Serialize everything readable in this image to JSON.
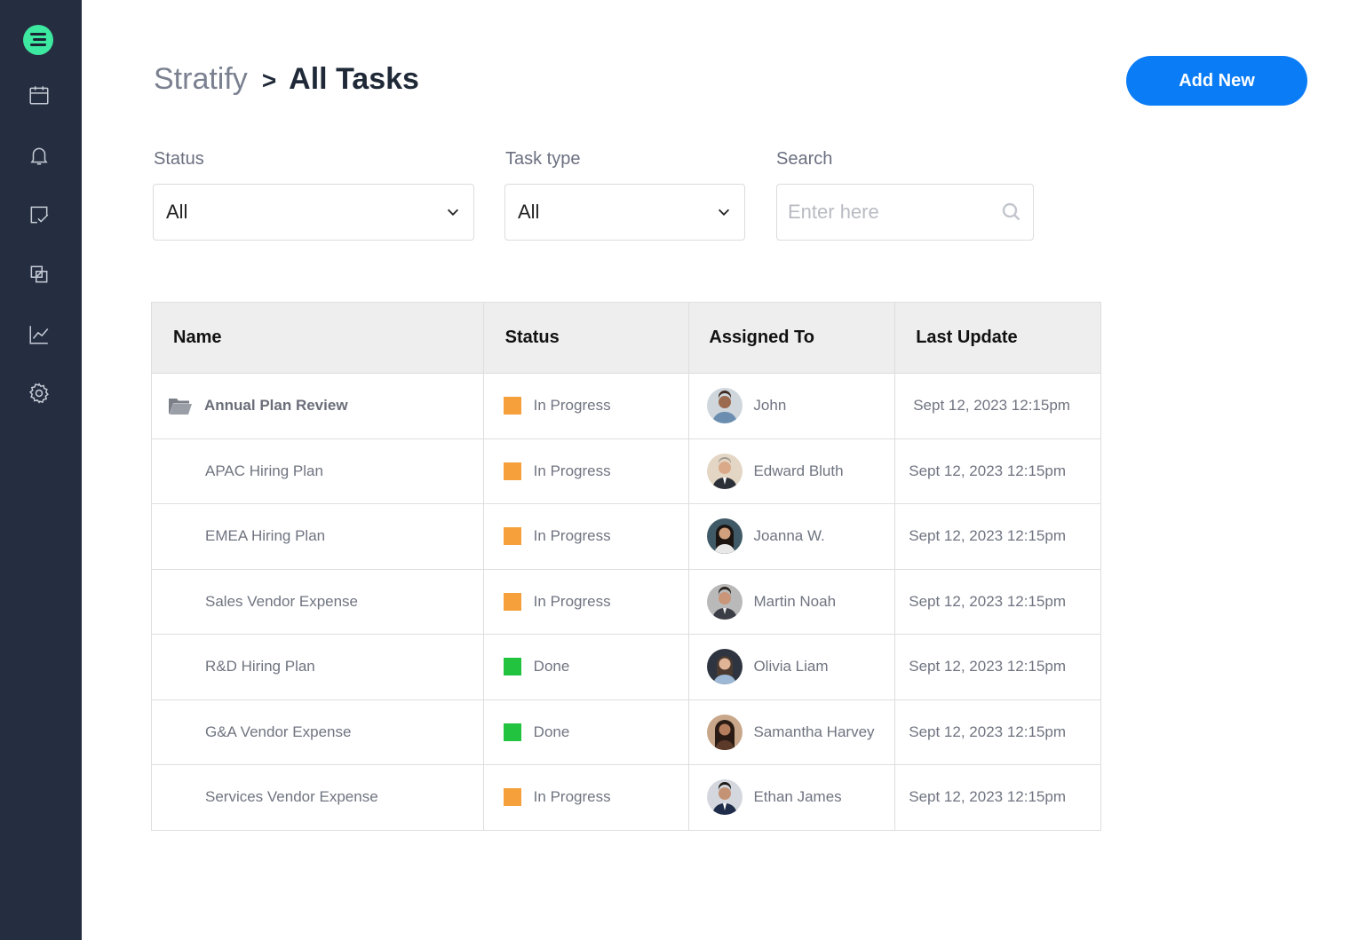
{
  "app": {
    "name": "Stratify",
    "logo": "stratify-logo-icon"
  },
  "sidebar": {
    "items": [
      {
        "name": "calendar-icon"
      },
      {
        "name": "bell-icon"
      },
      {
        "name": "tasks-icon"
      },
      {
        "name": "layers-icon"
      },
      {
        "name": "chart-icon"
      },
      {
        "name": "gear-icon"
      }
    ]
  },
  "breadcrumb": {
    "root": "Stratify",
    "separator": ">",
    "current": "All Tasks"
  },
  "actions": {
    "add_new": "Add New"
  },
  "filters": {
    "status": {
      "label": "Status",
      "value": "All"
    },
    "task_type": {
      "label": "Task type",
      "value": "All"
    },
    "search": {
      "label": "Search",
      "placeholder": "Enter here"
    }
  },
  "table": {
    "headers": [
      "Name",
      "Status",
      "Assigned To",
      "Last Update"
    ],
    "rows": [
      {
        "name": "Annual Plan Review",
        "status": "In Progress",
        "assignee": "John",
        "updated": "Sept 12, 2023 12:15pm"
      },
      {
        "name": "APAC Hiring Plan",
        "status": "In Progress",
        "assignee": "Edward Bluth",
        "updated": "Sept 12, 2023 12:15pm"
      },
      {
        "name": "EMEA Hiring Plan",
        "status": "In Progress",
        "assignee": "Joanna W.",
        "updated": "Sept 12, 2023 12:15pm"
      },
      {
        "name": "Sales Vendor Expense",
        "status": "In Progress",
        "assignee": "Martin Noah",
        "updated": "Sept 12, 2023 12:15pm"
      },
      {
        "name": "R&D Hiring Plan",
        "status": "Done",
        "assignee": "Olivia Liam",
        "updated": "Sept 12, 2023 12:15pm"
      },
      {
        "name": "G&A Vendor Expense",
        "status": "Done",
        "assignee": "Samantha Harvey",
        "updated": "Sept 12, 2023 12:15pm"
      },
      {
        "name": "Services Vendor Expense",
        "status": "In Progress",
        "assignee": "Ethan James",
        "updated": "Sept 12, 2023 12:15pm"
      }
    ]
  },
  "colors": {
    "sidebar": "#252e40",
    "accent": "#0a7cf6",
    "logo": "#3de8a0",
    "in_progress": "#f5a03a",
    "done": "#22c43f"
  }
}
